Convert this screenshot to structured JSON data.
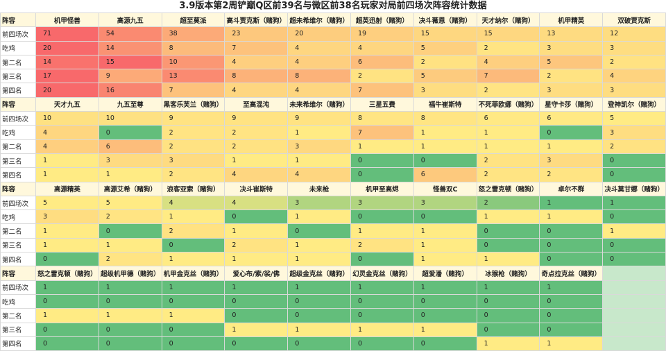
{
  "title": "3.9版本第2周铲巅Q区前39名与微区前38名玩家对局前四场次阵容统计数据",
  "blocks": [
    {
      "header": "阵容",
      "columns": [
        "机甲怪兽",
        "高源九五",
        "超至莫派",
        "高斗贾克斯（赌狗）",
        "超未希维尔（赌狗）",
        "超英迅射（赌狗）",
        "决斗薇恩（赌狗）",
        "天才纳尔（赌狗）",
        "机甲精英",
        "双破贾克斯"
      ],
      "rows": [
        {
          "label": "前四场次",
          "values": [
            71,
            54,
            38,
            23,
            20,
            19,
            15,
            15,
            13,
            12
          ]
        },
        {
          "label": "吃鸡",
          "values": [
            20,
            14,
            8,
            7,
            4,
            4,
            5,
            2,
            3,
            3
          ]
        },
        {
          "label": "第二名",
          "values": [
            14,
            15,
            10,
            4,
            4,
            6,
            2,
            4,
            5,
            2
          ]
        },
        {
          "label": "第三名",
          "values": [
            17,
            9,
            13,
            8,
            8,
            2,
            5,
            7,
            2,
            4
          ]
        },
        {
          "label": "第四名",
          "values": [
            20,
            16,
            7,
            4,
            4,
            7,
            3,
            2,
            3,
            3
          ]
        }
      ]
    },
    {
      "header": "阵容",
      "columns": [
        "天才九五",
        "九五至尊",
        "黑客乐芙兰（赌狗）",
        "至高混沌",
        "未来希维尔（赌狗）",
        "三星五费",
        "福牛崔斯特",
        "不死菲欧娜（赌狗）",
        "星守卡莎（赌狗）",
        "登神凯尔（赌狗）"
      ],
      "rows": [
        {
          "label": "前四场次",
          "values": [
            10,
            10,
            9,
            9,
            9,
            8,
            8,
            6,
            6,
            5
          ]
        },
        {
          "label": "吃鸡",
          "values": [
            4,
            0,
            2,
            2,
            1,
            7,
            1,
            1,
            0,
            3
          ]
        },
        {
          "label": "第二名",
          "values": [
            4,
            6,
            2,
            2,
            3,
            1,
            1,
            1,
            1,
            2
          ]
        },
        {
          "label": "第三名",
          "values": [
            1,
            3,
            3,
            1,
            1,
            0,
            0,
            2,
            3,
            0
          ]
        },
        {
          "label": "第四名",
          "values": [
            1,
            1,
            2,
            4,
            4,
            0,
            6,
            2,
            2,
            0
          ]
        }
      ]
    },
    {
      "header": "阵容",
      "columns": [
        "高源精英",
        "高源艾希（赌狗）",
        "浪客亚索（赌狗）",
        "决斗崔斯特",
        "未来枪",
        "机甲至高烬",
        "怪兽双C",
        "怒之雷克顿（赌狗）",
        "卓尔不群",
        "决斗莫甘娜（赌狗）"
      ],
      "rows": [
        {
          "label": "前四场次",
          "values": [
            5,
            5,
            4,
            4,
            3,
            3,
            3,
            2,
            1,
            1
          ]
        },
        {
          "label": "吃鸡",
          "values": [
            3,
            2,
            1,
            0,
            1,
            0,
            0,
            1,
            1,
            0
          ]
        },
        {
          "label": "第二名",
          "values": [
            1,
            0,
            2,
            1,
            0,
            1,
            1,
            0,
            0,
            1
          ]
        },
        {
          "label": "第三名",
          "values": [
            1,
            1,
            0,
            2,
            1,
            2,
            1,
            0,
            0,
            0
          ]
        },
        {
          "label": "第四名",
          "values": [
            0,
            2,
            1,
            1,
            1,
            0,
            1,
            1,
            0,
            0
          ]
        }
      ]
    },
    {
      "header": "阵容",
      "columns": [
        "怒之雷克顿（赌狗）",
        "超级机甲德（赌狗）",
        "机甲金克丝（赌狗）",
        "爱心布/索/裟/佛",
        "超级金克丝（赌狗）",
        "幻灵金克丝（赌狗）",
        "超爱潘（赌狗）",
        "冰猴枪（赌狗）",
        "奇点拉克丝（赌狗）"
      ],
      "rows": [
        {
          "label": "前四场次",
          "values": [
            1,
            1,
            1,
            1,
            1,
            1,
            1,
            1,
            1
          ]
        },
        {
          "label": "吃鸡",
          "values": [
            0,
            0,
            0,
            0,
            0,
            0,
            0,
            0,
            0
          ]
        },
        {
          "label": "第二名",
          "values": [
            1,
            1,
            1,
            0,
            0,
            0,
            0,
            0,
            0
          ]
        },
        {
          "label": "第三名",
          "values": [
            0,
            0,
            0,
            1,
            1,
            1,
            1,
            0,
            0
          ]
        },
        {
          "label": "第四名",
          "values": [
            0,
            0,
            0,
            0,
            0,
            0,
            0,
            1,
            1
          ]
        }
      ]
    }
  ]
}
